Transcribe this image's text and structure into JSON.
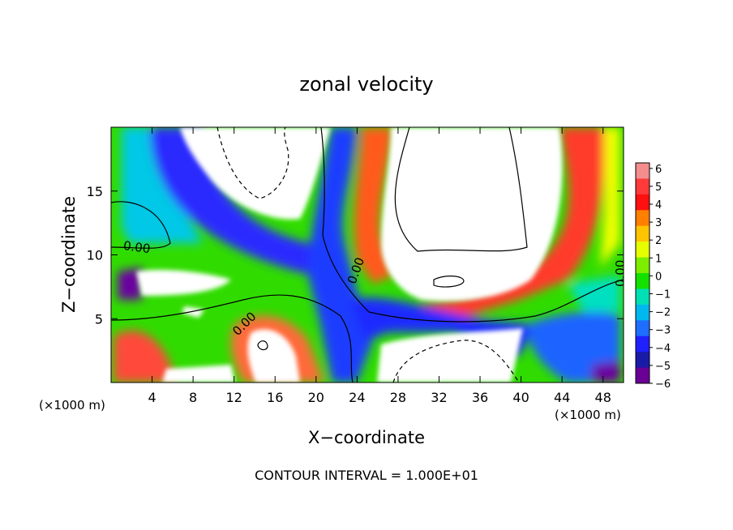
{
  "chart_data": {
    "type": "heatmap",
    "title": "zonal velocity",
    "xlabel": "X−coordinate",
    "ylabel": "Z−coordinate",
    "x_unit_left": "(×1000 m)",
    "x_unit_right": "(×1000 m)",
    "xlim": [
      0,
      50
    ],
    "ylim": [
      0,
      20
    ],
    "x_ticks": [
      "4",
      "8",
      "12",
      "16",
      "20",
      "24",
      "28",
      "32",
      "36",
      "40",
      "44",
      "48"
    ],
    "x_tick_values": [
      4,
      8,
      12,
      16,
      20,
      24,
      28,
      32,
      36,
      40,
      44,
      48
    ],
    "y_ticks": [
      "5",
      "10",
      "15"
    ],
    "y_tick_values": [
      5,
      10,
      15
    ],
    "colorbar": {
      "labels": [
        "6",
        "5",
        "4",
        "3",
        "2",
        "1",
        "0",
        "−1",
        "−2",
        "−3",
        "−4",
        "−5",
        "−6"
      ],
      "values": [
        6,
        5,
        4,
        3,
        2,
        1,
        0,
        -1,
        -2,
        -3,
        -4,
        -5,
        -6
      ],
      "colors": [
        "#f48e8e",
        "#ff3a3a",
        "#ff1010",
        "#ff8000",
        "#ffc400",
        "#e6ff00",
        "#7dee00",
        "#14e000",
        "#00e0b4",
        "#00b8ee",
        "#1e6eff",
        "#2020ff",
        "#1a1aa8",
        "#6a0096"
      ]
    },
    "contour_labels": [
      "0.00",
      "0.00",
      "0.00",
      "0.00"
    ],
    "footer": "CONTOUR INTERVAL = 1.000E+01",
    "over_range_color": "#ffffff"
  }
}
